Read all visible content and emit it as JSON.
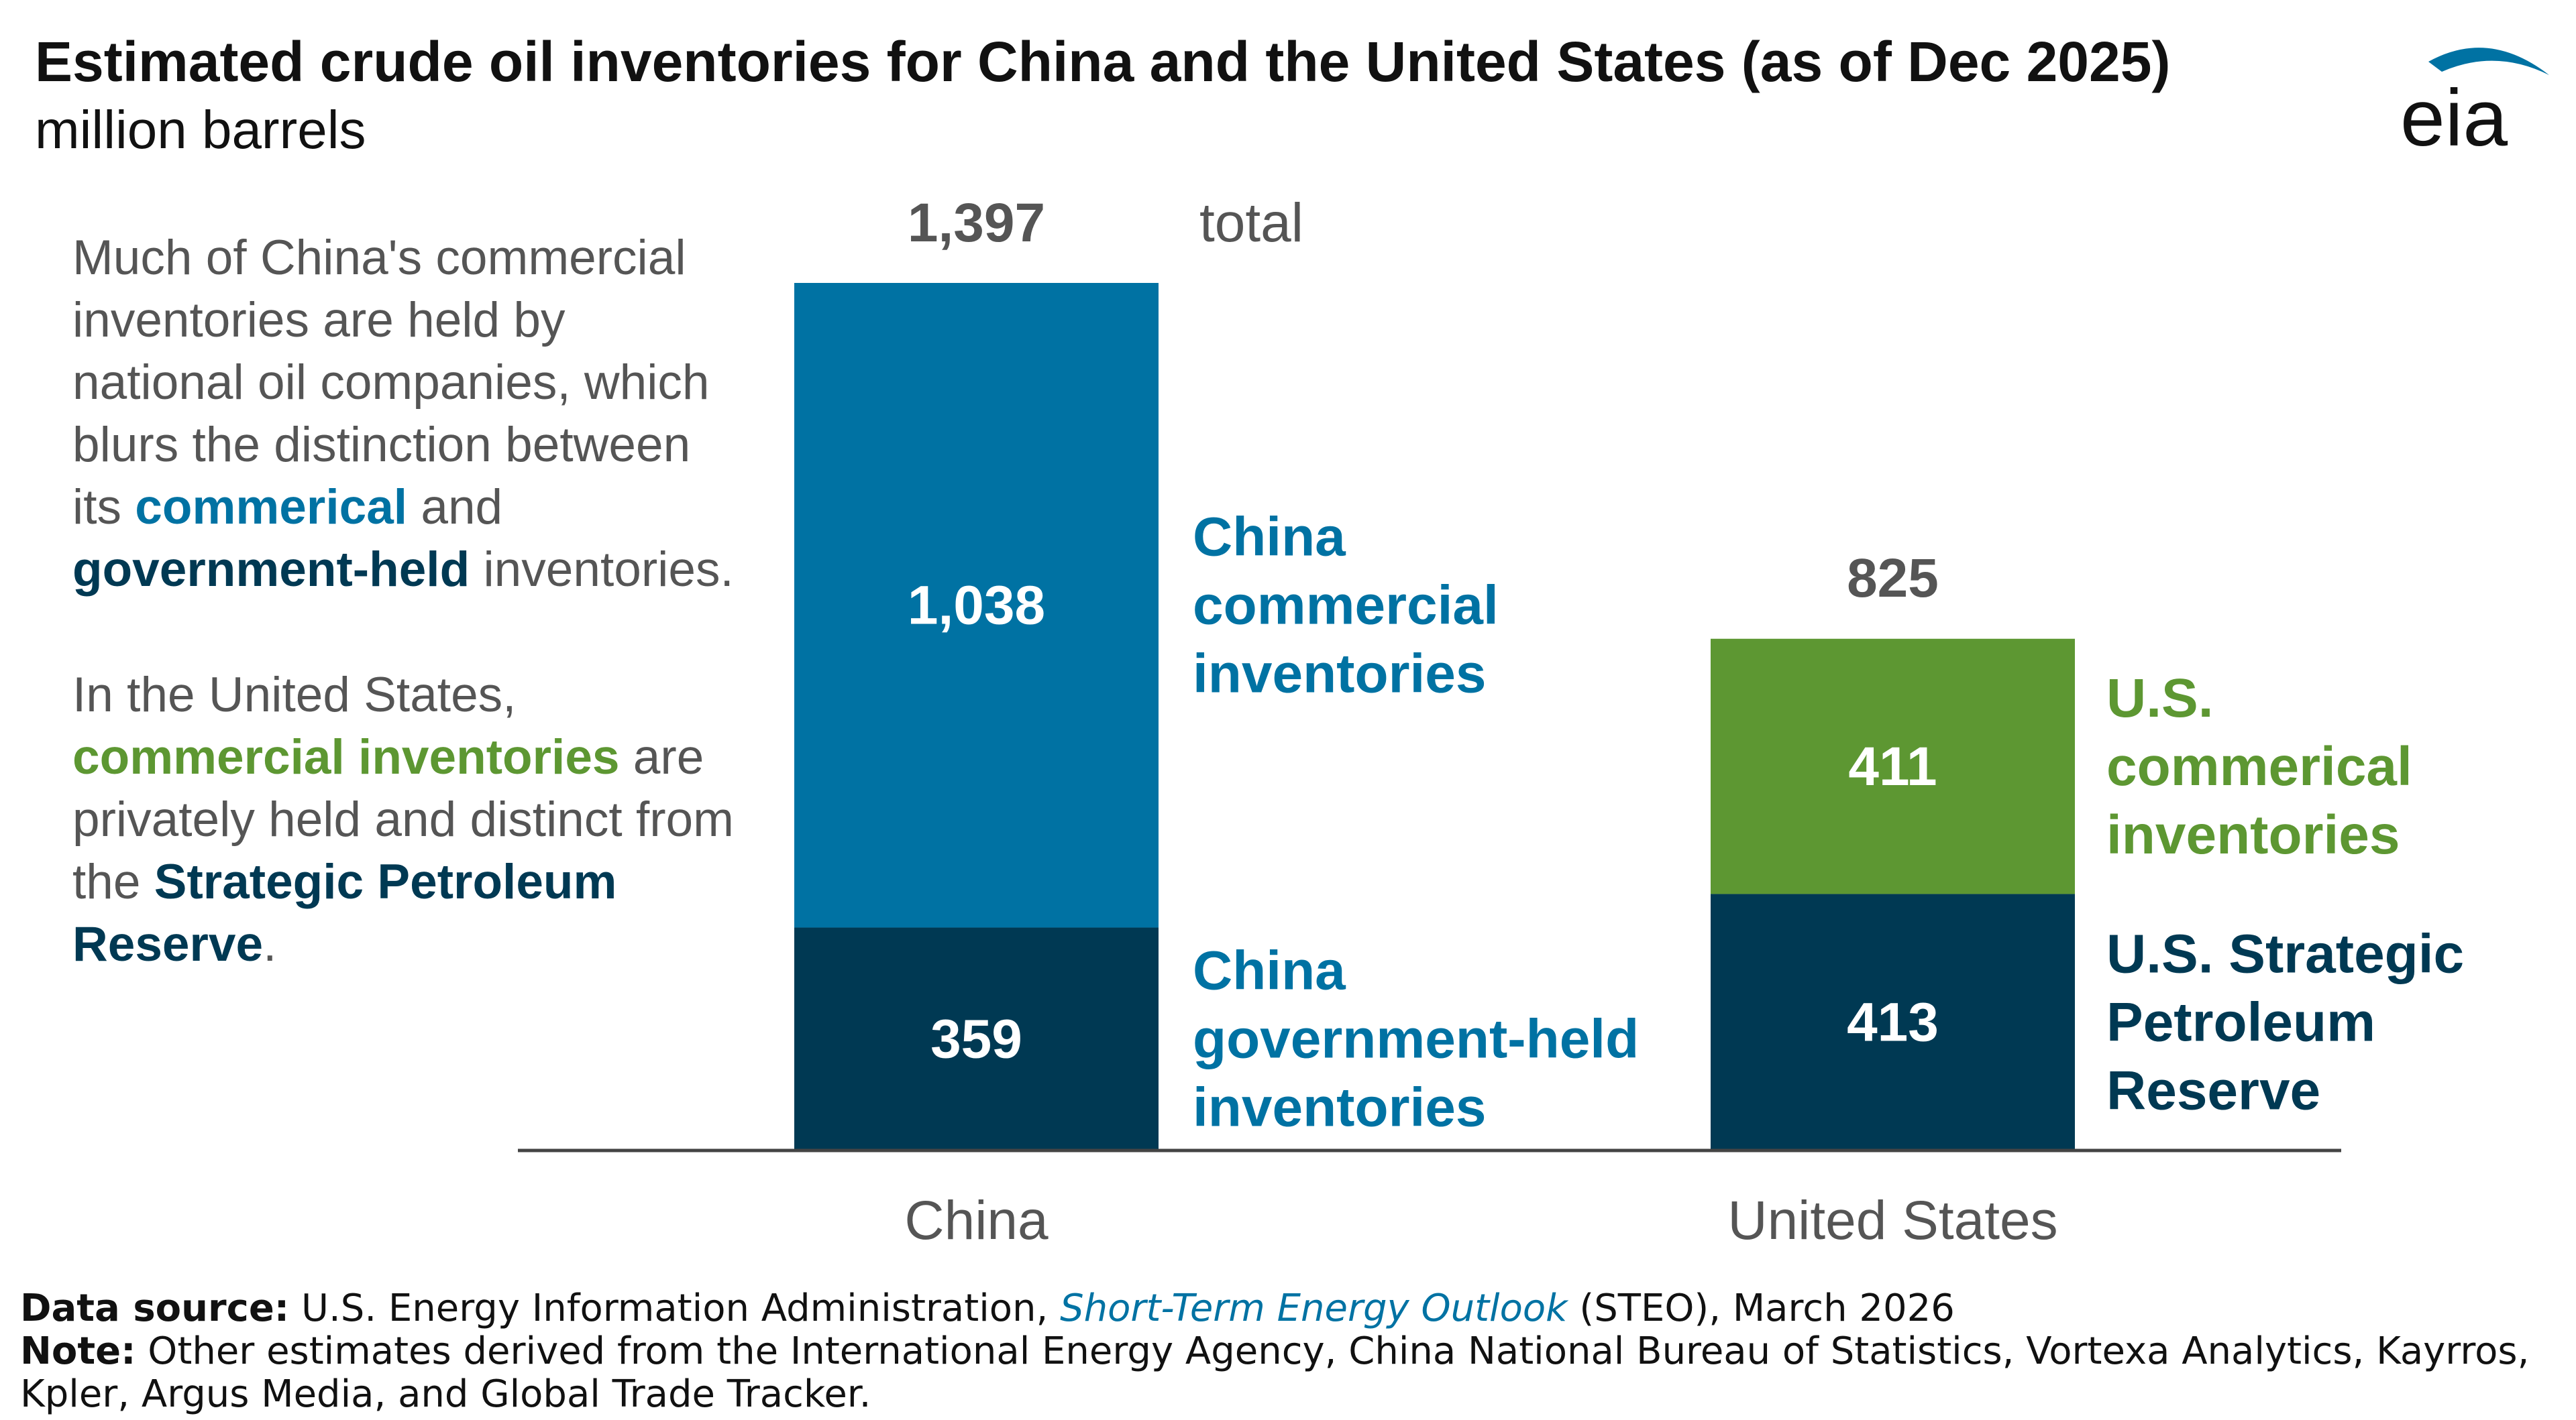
{
  "title": "Estimated crude oil inventories for China and the United States (as of Dec 2025)",
  "subtitle": "million barrels",
  "logo_text": "eia",
  "narrative": {
    "p1_a": "Much of China's commercial inventories are held by national oil companies, which blurs the distinction between its ",
    "p1_commercial": "commerical",
    "p1_and": " and ",
    "p1_gov": "government-held",
    "p1_end": " inventories.",
    "p2_a": "In the United States, ",
    "p2_commercial": "commercial inventories",
    "p2_b": " are privately held and distinct from the ",
    "p2_spr": "Strategic Petroleum Reserve",
    "p2_end": "."
  },
  "footer": {
    "source_label": "Data source:",
    "source_a": " U.S. Energy Information Administration, ",
    "source_link": "Short-Term Energy Outlook",
    "source_b": " (STEO), March 2026",
    "note_label": "Note:",
    "note_text": " Other estimates derived from the International Energy Agency, China National Bureau of Statistics, Vortexa Analytics, Kayrros, Kpler, Argus Media, and Global Trade Tracker."
  },
  "chart_data": {
    "type": "bar",
    "stacked": true,
    "title": "Estimated crude oil inventories for China and the United States (as of Dec 2025)",
    "ylabel": "million barrels",
    "categories": [
      "China",
      "United States"
    ],
    "ylim": [
      0,
      1397
    ],
    "total_suffix": "total",
    "series": [
      {
        "name": "government",
        "values": [
          359,
          413
        ],
        "labels": [
          "359",
          "413"
        ],
        "colors": [
          "#003953",
          "#003953"
        ],
        "legend": [
          [
            "China",
            "government-held",
            "inventories"
          ],
          [
            "U.S. Strategic",
            "Petroleum",
            "Reserve"
          ]
        ],
        "legend_colors": [
          "#0072A3",
          "#003953"
        ]
      },
      {
        "name": "commercial",
        "values": [
          1038,
          411
        ],
        "labels": [
          "1,038",
          "411"
        ],
        "colors": [
          "#0072A3",
          "#5D9732"
        ],
        "legend": [
          [
            "China",
            "commercial",
            "inventories"
          ],
          [
            "U.S.",
            "commerical",
            "inventories"
          ]
        ],
        "legend_colors": [
          "#0072A3",
          "#5D9732"
        ]
      }
    ],
    "totals": [
      1397,
      825
    ],
    "total_labels": [
      "1,397",
      "825"
    ]
  }
}
